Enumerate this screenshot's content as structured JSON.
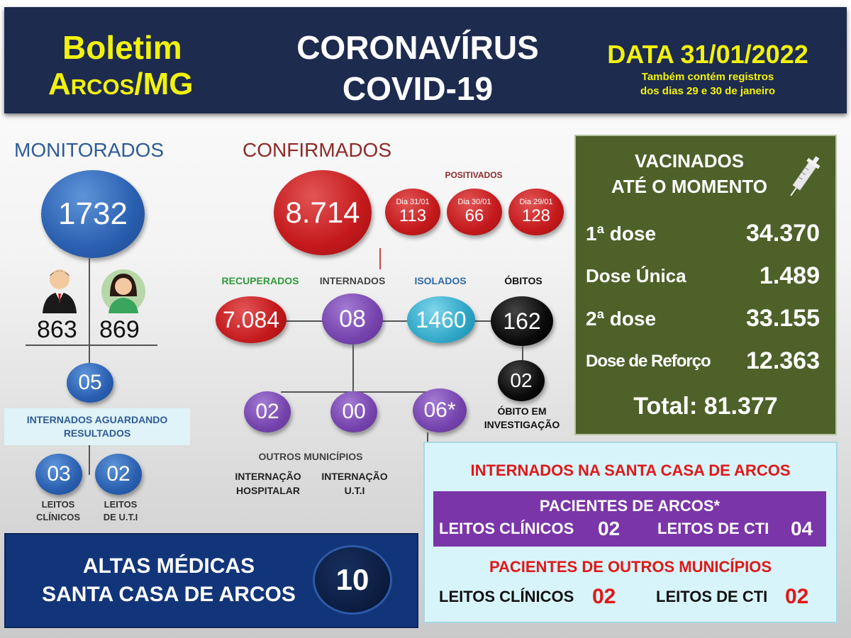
{
  "header": {
    "boletim": "Boletim",
    "cidade": "Arcos/MG",
    "title_line1": "CORONAVÍRUS",
    "title_line2": "COVID-19",
    "data_label": "DATA 31/01/2022",
    "note_line1": "Também contém registros",
    "note_line2": "dos dias 29 e 30 de janeiro"
  },
  "monitorados": {
    "title": "MONITORADOS",
    "total": "1732",
    "male": "863",
    "female": "869",
    "internados_aguardando": "05",
    "internados_label_line1": "INTERNADOS AGUARDANDO",
    "internados_label_line2": "RESULTADOS",
    "leitos_clinicos": "03",
    "leitos_uti": "02",
    "leitos_clinicos_line1": "LEITOS",
    "leitos_clinicos_line2": "CLÍNICOS",
    "leitos_uti_line1": "LEITOS",
    "leitos_uti_line2": "DE  U.T.I"
  },
  "confirmados": {
    "title": "CONFIRMADOS",
    "total": "8.714",
    "positivados_label": "POSITIVADOS",
    "days": [
      {
        "label": "Dia 31/01",
        "value": "113"
      },
      {
        "label": "Dia 30/01",
        "value": "66"
      },
      {
        "label": "Dia 29/01",
        "value": "128"
      }
    ],
    "recuperados_label": "RECUPERADOS",
    "recuperados": "7.084",
    "internados_label": "INTERNADOS",
    "internados": "08",
    "isolados_label": "ISOLADOS",
    "isolados": "1460",
    "obitos_label": "ÓBITOS",
    "obitos": "162",
    "obito_investigacao": "02",
    "obito_investigacao_line1": "ÓBITO EM",
    "obito_investigacao_line2": "INVESTIGAÇÃO",
    "outros_municipios": "02",
    "internacao_hospitalar": "00",
    "internacao_uti": "06*",
    "outros_municipios_label": "OUTROS MUNICÍPIOS",
    "internacao_hospitalar_line1": "INTERNAÇÃO",
    "internacao_hospitalar_line2": "HOSPITALAR",
    "internacao_uti_line1": "INTERNAÇÃO",
    "internacao_uti_line2": "U.T.I"
  },
  "vacinados": {
    "title_line1": "VACINADOS",
    "title_line2": "ATÉ O MOMENTO",
    "rows": [
      {
        "label": "1ª dose",
        "value": "34.370"
      },
      {
        "label": "Dose Única",
        "value": "1.489"
      },
      {
        "label": "2ª dose",
        "value": "33.155"
      },
      {
        "label": "Dose de Reforço",
        "value": "12.363"
      }
    ],
    "total": "Total: 81.377"
  },
  "santa_casa": {
    "title": "INTERNADOS NA SANTA CASA DE ARCOS",
    "pacientes_arcos": "PACIENTES DE ARCOS*",
    "arcos_clinicos_label": "LEITOS CLÍNICOS",
    "arcos_clinicos": "02",
    "arcos_cti_label": "LEITOS DE CTI",
    "arcos_cti": "04",
    "pacientes_outros": "PACIENTES DE OUTROS MUNICÍPIOS",
    "outros_clinicos_label": "LEITOS CLÍNICOS",
    "outros_clinicos": "02",
    "outros_cti_label": "LEITOS DE CTI",
    "outros_cti": "02"
  },
  "altas": {
    "line1": "ALTAS MÉDICAS",
    "line2": "SANTA CASA DE ARCOS",
    "value": "10"
  },
  "colors": {
    "header_bg": "#1d2b4f",
    "yellow": "#f2f20c",
    "red": "#c4191c",
    "purple": "#7543ad",
    "cyan": "#2fa7c8",
    "blue": "#2a5fb0",
    "vac_bg": "#4d6129"
  },
  "icons": [
    "male-person-icon",
    "female-person-icon",
    "syringe-icon"
  ]
}
